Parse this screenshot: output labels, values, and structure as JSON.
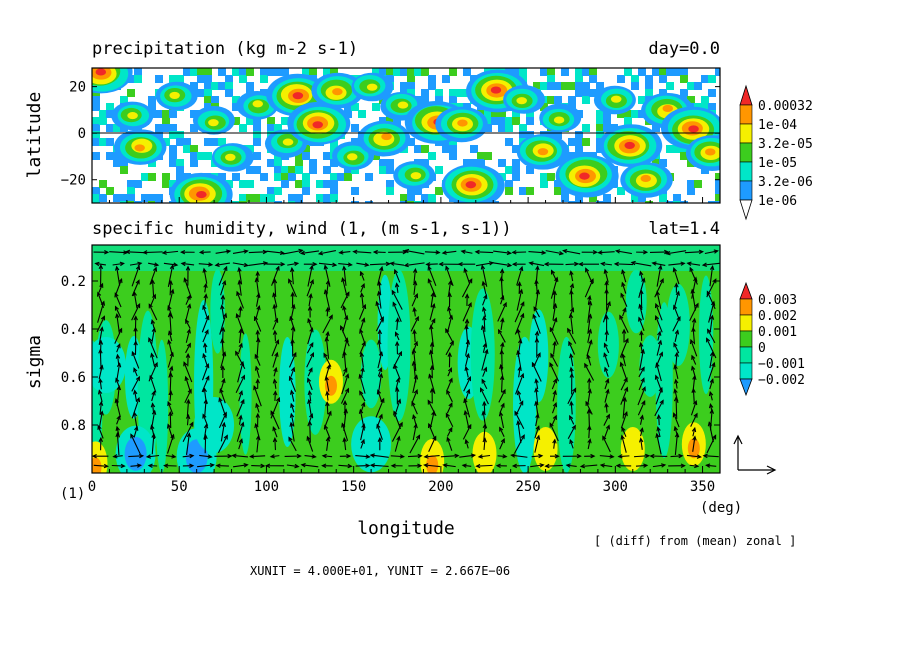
{
  "chart_data": [
    {
      "type": "heatmap",
      "name": "precipitation-panel",
      "title": "precipitation (kg m-2 s-1)",
      "time_label": "day=0.0",
      "xlabel": "",
      "ylabel": "latitude",
      "xlim": [
        0,
        360
      ],
      "ylim": [
        -30,
        28
      ],
      "y_ticks": [
        20,
        0,
        -20
      ],
      "y_tick_labels": [
        "20",
        "0",
        "−20"
      ],
      "zero_line": true,
      "color_levels": [
        "1e-06",
        "3.2e-06",
        "1e-05",
        "3.2e-05",
        "1e-04",
        "0.00032"
      ],
      "level_values": [
        1e-06,
        3.2e-06,
        1e-05,
        3.2e-05,
        0.0001,
        0.00032
      ],
      "level_colors": [
        "#ffffff",
        "#1e9bff",
        "#00e6c8",
        "#3ccd1e",
        "#f5f000",
        "#ff9600",
        "#f02828"
      ],
      "storm_centers": [
        {
          "lon": 5,
          "lat": 26,
          "intensity": 4.5
        },
        {
          "lon": 23,
          "lat": 8,
          "intensity": 3.2
        },
        {
          "lon": 28,
          "lat": -6,
          "intensity": 3.5
        },
        {
          "lon": 48,
          "lat": 16,
          "intensity": 2.5
        },
        {
          "lon": 62,
          "lat": -26,
          "intensity": 5.2
        },
        {
          "lon": 70,
          "lat": 5,
          "intensity": 3.0
        },
        {
          "lon": 80,
          "lat": -10,
          "intensity": 3.0
        },
        {
          "lon": 95,
          "lat": 12,
          "intensity": 3.2
        },
        {
          "lon": 112,
          "lat": -4,
          "intensity": 2.8
        },
        {
          "lon": 118,
          "lat": 16,
          "intensity": 4.8
        },
        {
          "lon": 130,
          "lat": 4,
          "intensity": 4.5
        },
        {
          "lon": 140,
          "lat": 18,
          "intensity": 3.5
        },
        {
          "lon": 150,
          "lat": -10,
          "intensity": 3.2
        },
        {
          "lon": 160,
          "lat": 20,
          "intensity": 3.2
        },
        {
          "lon": 168,
          "lat": -2,
          "intensity": 3.5
        },
        {
          "lon": 178,
          "lat": 12,
          "intensity": 3.0
        },
        {
          "lon": 185,
          "lat": -18,
          "intensity": 3.2
        },
        {
          "lon": 198,
          "lat": 5,
          "intensity": 4.8
        },
        {
          "lon": 212,
          "lat": 4,
          "intensity": 4.0
        },
        {
          "lon": 218,
          "lat": -22,
          "intensity": 4.5
        },
        {
          "lon": 232,
          "lat": 18,
          "intensity": 5.0
        },
        {
          "lon": 247,
          "lat": 14,
          "intensity": 3.2
        },
        {
          "lon": 258,
          "lat": -8,
          "intensity": 3.5
        },
        {
          "lon": 268,
          "lat": 6,
          "intensity": 3.0
        },
        {
          "lon": 283,
          "lat": -18,
          "intensity": 4.5
        },
        {
          "lon": 300,
          "lat": 14,
          "intensity": 3.0
        },
        {
          "lon": 308,
          "lat": -5,
          "intensity": 4.8
        },
        {
          "lon": 318,
          "lat": -20,
          "intensity": 3.5
        },
        {
          "lon": 330,
          "lat": 10,
          "intensity": 3.5
        },
        {
          "lon": 345,
          "lat": 2,
          "intensity": 4.5
        },
        {
          "lon": 355,
          "lat": -8,
          "intensity": 3.5
        }
      ]
    },
    {
      "type": "heatmap",
      "name": "humidity-wind-panel",
      "title": "specific humidity, wind (1, (m s-1, s-1))",
      "lat_label": "lat=1.4",
      "xlabel": "longitude",
      "x_unit_label": "(deg)",
      "ylabel": "sigma",
      "xlim": [
        0,
        360
      ],
      "ylim": [
        1.0,
        0.05
      ],
      "x_ticks": [
        0,
        50,
        100,
        150,
        200,
        250,
        300,
        350
      ],
      "x_tick_labels": [
        "0",
        "50",
        "100",
        "150",
        "200",
        "250",
        "300",
        "350"
      ],
      "y_ticks": [
        0.2,
        0.4,
        0.6,
        0.8
      ],
      "y_tick_labels": [
        "0.2",
        "0.4",
        "0.6",
        "0.8"
      ],
      "color_levels": [
        "0.003",
        "0.002",
        "0.001",
        "0",
        "−0.001",
        "−0.002"
      ],
      "level_values": [
        -0.002,
        -0.001,
        0,
        0.001,
        0.002,
        0.003
      ],
      "level_colors": [
        "#1e9bff",
        "#00e6c8",
        "#00e6a0",
        "#3ccd1e",
        "#f5f000",
        "#ff9600",
        "#f02828"
      ],
      "humidity_anomalies": [
        {
          "lon": 8,
          "sigma": 0.55,
          "value": -0.0014
        },
        {
          "lon": 25,
          "sigma": 0.92,
          "value": -0.0016
        },
        {
          "lon": 60,
          "sigma": 0.93,
          "value": -0.0018
        },
        {
          "lon": 70,
          "sigma": 0.8,
          "value": -0.001
        },
        {
          "lon": 137,
          "sigma": 0.62,
          "value": 0.0024
        },
        {
          "lon": 160,
          "sigma": 0.88,
          "value": -0.001
        },
        {
          "lon": 195,
          "sigma": 0.95,
          "value": 0.002
        },
        {
          "lon": 225,
          "sigma": 0.92,
          "value": 0.0018
        },
        {
          "lon": 260,
          "sigma": 0.9,
          "value": 0.0016
        },
        {
          "lon": 310,
          "sigma": 0.9,
          "value": 0.0015
        },
        {
          "lon": 345,
          "sigma": 0.88,
          "value": 0.002
        },
        {
          "lon": 2,
          "sigma": 0.96,
          "value": 0.0026
        }
      ],
      "wind_field": {
        "reference_vector_label": "(1)",
        "x_unit": "XUNIT = 4.000E+01, YUNIT = 2.667E−06",
        "columns": 36,
        "sigma_levels": [
          0.08,
          0.13,
          0.18,
          0.23,
          0.28,
          0.33,
          0.38,
          0.43,
          0.48,
          0.53,
          0.58,
          0.63,
          0.68,
          0.73,
          0.78,
          0.83,
          0.88,
          0.93,
          0.97
        ]
      },
      "annotation": "[ (diff) from (mean) zonal ]"
    }
  ]
}
